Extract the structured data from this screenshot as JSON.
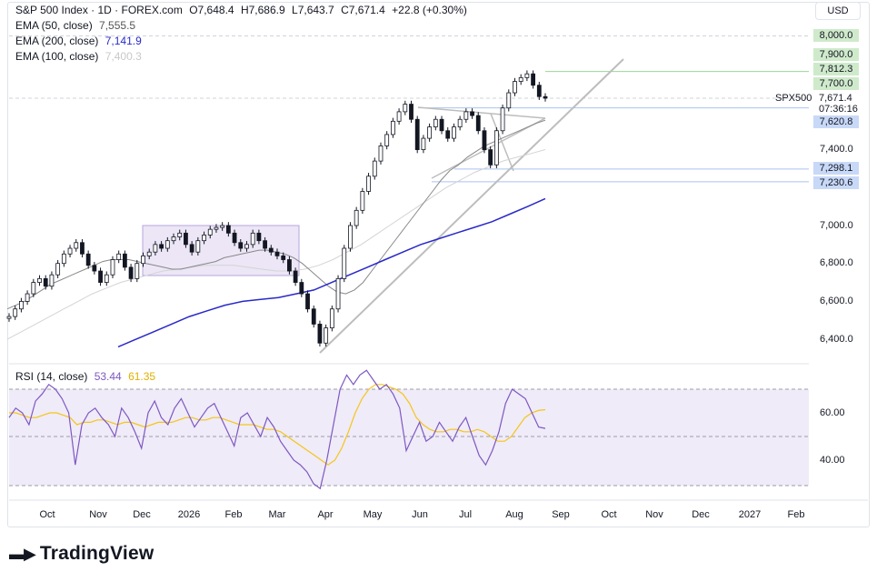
{
  "header": {
    "title": "S&P 500 Index · 1D · FOREX.com",
    "ohlc": [
      {
        "k": "O",
        "v": "7,648.4"
      },
      {
        "k": "H",
        "v": "7,686.9"
      },
      {
        "k": "L",
        "v": "7,643.7"
      },
      {
        "k": "C",
        "v": "7,671.4"
      }
    ],
    "change": "+22.8 (+0.30%)"
  },
  "indicators": [
    {
      "label": "EMA (50, close)",
      "value": "7,555.5",
      "color": "#555555"
    },
    {
      "label": "EMA (200, close)",
      "value": "7,141.9",
      "color": "#2929c9"
    },
    {
      "label": "EMA (100, close)",
      "value": "7,400.3",
      "color": "#c8c8c8"
    }
  ],
  "currency": "USD",
  "symbol_label": "SPX500",
  "countdown": "07:36:16",
  "price_axis": [
    "6,400.0",
    "6,600.0",
    "6,800.0",
    "7,000.0",
    "7,400.0"
  ],
  "level_labels": [
    {
      "text": "8,000.0",
      "value": 8000,
      "color": "#cfeacb"
    },
    {
      "text": "7,900.0",
      "value": 7900,
      "color": "#cfeacb"
    },
    {
      "text": "7,812.3",
      "value": 7812.3,
      "color": "#cfeacb"
    },
    {
      "text": "7,700.0",
      "value": 7700,
      "color": "#cfeacb"
    },
    {
      "text": "7,671.4",
      "value": 7671.4,
      "color": "#ffffff"
    },
    {
      "text": "7,620.8",
      "value": 7620.8,
      "color": "#c8d8f7"
    },
    {
      "text": "7,298.1",
      "value": 7298.1,
      "color": "#c8d8f7"
    },
    {
      "text": "7,230.6",
      "value": 7230.6,
      "color": "#c8d8f7"
    }
  ],
  "rsi": {
    "label": "RSI (14, close)",
    "value": "53.44",
    "ma_value": "61.35",
    "axis": [
      "60.00",
      "40.00"
    ],
    "line_color": "#7e57c2",
    "ma_color": "#f5c518"
  },
  "time_axis": [
    "Oct",
    "Nov",
    "Dec",
    "2026",
    "Feb",
    "Mar",
    "Apr",
    "May",
    "Jun",
    "Jul",
    "Aug",
    "Sep",
    "Oct",
    "Nov",
    "Dec",
    "2027",
    "Feb"
  ],
  "brand": "TradingView",
  "chart_data": {
    "type": "line",
    "title": "S&P 500 Index · 1D · FOREX.com",
    "y_range": [
      6300,
      8050
    ],
    "close_series": [
      6520,
      6560,
      6600,
      6640,
      6700,
      6720,
      6680,
      6740,
      6800,
      6850,
      6880,
      6910,
      6850,
      6790,
      6760,
      6700,
      6740,
      6820,
      6850,
      6780,
      6720,
      6800,
      6840,
      6860,
      6900,
      6880,
      6920,
      6940,
      6960,
      6900,
      6860,
      6920,
      6950,
      6980,
      6990,
      7000,
      6960,
      6910,
      6880,
      6900,
      6960,
      6920,
      6880,
      6860,
      6840,
      6820,
      6760,
      6700,
      6640,
      6560,
      6480,
      6380,
      6460,
      6560,
      6720,
      6880,
      7000,
      7080,
      7180,
      7260,
      7340,
      7420,
      7480,
      7550,
      7600,
      7640,
      7560,
      7400,
      7460,
      7520,
      7560,
      7500,
      7460,
      7520,
      7560,
      7600,
      7580,
      7500,
      7400,
      7320,
      7500,
      7620,
      7700,
      7760,
      7780,
      7800,
      7740,
      7680,
      7671.4
    ],
    "ema50": [
      6560,
      6580,
      6600,
      6630,
      6660,
      6690,
      6710,
      6730,
      6750,
      6770,
      6790,
      6810,
      6820,
      6820,
      6820,
      6810,
      6800,
      6790,
      6780,
      6770,
      6770,
      6780,
      6790,
      6800,
      6810,
      6830,
      6840,
      6850,
      6860,
      6870,
      6870,
      6860,
      6850,
      6830,
      6800,
      6760,
      6720,
      6680,
      6650,
      6640,
      6660,
      6700,
      6760,
      6820,
      6880,
      6940,
      7000,
      7060,
      7120,
      7180,
      7240,
      7290,
      7320,
      7360,
      7390,
      7420,
      7440,
      7460,
      7480,
      7500,
      7520,
      7540,
      7555.5
    ],
    "ema100": [
      6400,
      6440,
      6480,
      6520,
      6560,
      6600,
      6640,
      6670,
      6700,
      6720,
      6740,
      6760,
      6770,
      6780,
      6790,
      6790,
      6790,
      6780,
      6770,
      6760,
      6760,
      6770,
      6790,
      6820,
      6860,
      6900,
      6950,
      7000,
      7050,
      7100,
      7150,
      7200,
      7240,
      7280,
      7310,
      7340,
      7360,
      7380,
      7400.3
    ],
    "ema200": [
      6360,
      6400,
      6440,
      6480,
      6520,
      6550,
      6580,
      6600,
      6610,
      6620,
      6640,
      6660,
      6700,
      6740,
      6780,
      6820,
      6860,
      6900,
      6930,
      6960,
      6990,
      7020,
      7060,
      7100,
      7141.9
    ],
    "rsi_series": [
      58,
      62,
      60,
      55,
      65,
      68,
      72,
      70,
      66,
      60,
      38,
      55,
      60,
      62,
      58,
      55,
      50,
      62,
      58,
      52,
      45,
      60,
      65,
      58,
      55,
      62,
      66,
      60,
      54,
      58,
      62,
      64,
      58,
      52,
      46,
      58,
      60,
      55,
      50,
      58,
      54,
      48,
      44,
      40,
      38,
      35,
      30,
      28,
      40,
      55,
      70,
      76,
      72,
      76,
      78,
      74,
      70,
      72,
      68,
      62,
      44,
      50,
      56,
      48,
      50,
      56,
      52,
      48,
      54,
      58,
      50,
      42,
      38,
      44,
      52,
      64,
      70,
      68,
      66,
      60,
      54,
      53.44
    ],
    "rsi_ma_series": [
      60,
      60,
      59,
      58,
      58,
      59,
      60,
      60,
      59,
      58,
      55,
      56,
      56,
      57,
      57,
      56,
      55,
      56,
      56,
      55,
      54,
      55,
      56,
      56,
      56,
      57,
      58,
      58,
      57,
      57,
      58,
      58,
      57,
      56,
      55,
      55,
      55,
      54,
      53,
      53,
      52,
      50,
      48,
      46,
      44,
      42,
      40,
      38,
      40,
      45,
      52,
      60,
      66,
      70,
      72,
      72,
      71,
      70,
      68,
      64,
      58,
      55,
      53,
      52,
      52,
      53,
      53,
      52,
      52,
      53,
      52,
      50,
      48,
      48,
      50,
      54,
      58,
      60,
      61,
      61.35
    ],
    "annotations": [
      "triangle pattern",
      "rising trendline",
      "consolidation box Dec–Feb"
    ]
  }
}
